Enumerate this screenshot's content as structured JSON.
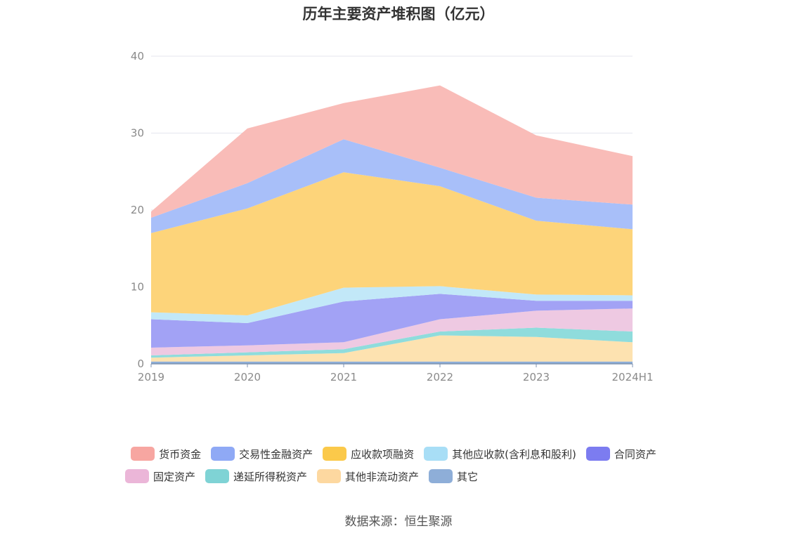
{
  "chart_data": {
    "type": "area",
    "stacked": true,
    "title": "历年主要资产堆积图（亿元）",
    "categories": [
      "2019",
      "2020",
      "2021",
      "2022",
      "2023",
      "2024H1"
    ],
    "ylim": [
      0,
      40
    ],
    "yticks": [
      0,
      10,
      20,
      30,
      40
    ],
    "grid": true,
    "legend_position": "bottom",
    "series": [
      {
        "name": "其它",
        "color": "#8eaed8",
        "values": [
          0.3,
          0.3,
          0.3,
          0.3,
          0.3,
          0.3
        ]
      },
      {
        "name": "其他非流动资产",
        "color": "#fde2b0",
        "values": [
          0.5,
          0.8,
          1.1,
          3.4,
          3.2,
          2.5
        ]
      },
      {
        "name": "递延所得税资产",
        "color": "#8fdcdc",
        "values": [
          0.3,
          0.4,
          0.5,
          0.5,
          1.2,
          1.4
        ]
      },
      {
        "name": "固定资产",
        "color": "#eec9e2",
        "values": [
          1.0,
          0.9,
          0.9,
          1.6,
          2.2,
          3.0
        ]
      },
      {
        "name": "合同资产",
        "color": "#a2a2f5",
        "values": [
          3.7,
          2.9,
          5.3,
          3.3,
          1.3,
          1.0
        ]
      },
      {
        "name": "其他应收款(含利息和股利)",
        "color": "#c2e8f8",
        "values": [
          0.9,
          1.0,
          1.8,
          1.0,
          0.8,
          0.7
        ]
      },
      {
        "name": "应收款项融资",
        "color": "#fdd47a",
        "values": [
          10.3,
          13.9,
          15.0,
          13.0,
          9.6,
          8.6
        ]
      },
      {
        "name": "交易性金融资产",
        "color": "#a8bff9",
        "values": [
          2.0,
          3.3,
          4.3,
          2.4,
          3.0,
          3.2
        ]
      },
      {
        "name": "货币资金",
        "color": "#f9bcb8",
        "values": [
          0.8,
          7.1,
          4.7,
          10.7,
          8.1,
          6.3
        ]
      }
    ]
  },
  "legend": {
    "row1": [
      {
        "name": "货币资金",
        "color": "#f7a6a1"
      },
      {
        "name": "交易性金融资产",
        "color": "#8fa9f5"
      },
      {
        "name": "应收款项融资",
        "color": "#fbc94a"
      },
      {
        "name": "其他应收款(含利息和股利)",
        "color": "#a8def6"
      },
      {
        "name": "合同资产",
        "color": "#7c7cf0"
      }
    ],
    "row2": [
      {
        "name": "固定资产",
        "color": "#ebb6d8"
      },
      {
        "name": "递延所得税资产",
        "color": "#7fd3d5"
      },
      {
        "name": "其他非流动资产",
        "color": "#fdd8a0"
      },
      {
        "name": "其它",
        "color": "#8eaed8"
      }
    ]
  },
  "source": "数据来源：恒生聚源"
}
